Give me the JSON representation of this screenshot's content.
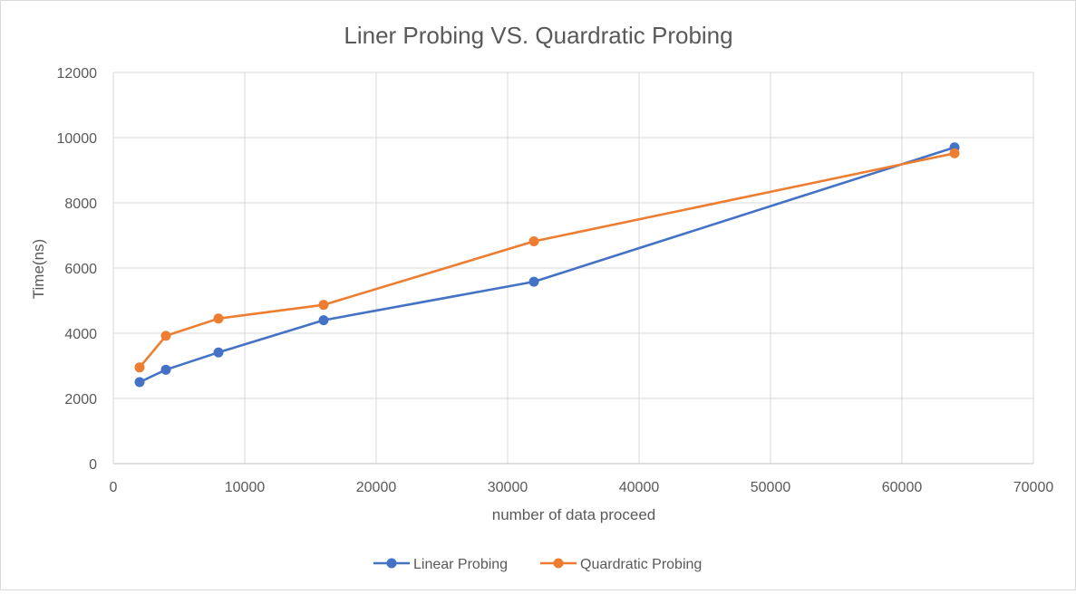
{
  "chart_data": {
    "type": "line",
    "title": "Liner Probing VS. Quardratic Probing",
    "xlabel": "number of data proceed",
    "ylabel": "Time(ns)",
    "xlim": [
      0,
      70000
    ],
    "ylim": [
      0,
      12000
    ],
    "x_ticks": [
      0,
      10000,
      20000,
      30000,
      40000,
      50000,
      60000,
      70000
    ],
    "y_ticks": [
      0,
      2000,
      4000,
      6000,
      8000,
      10000,
      12000
    ],
    "grid": true,
    "legend_position": "bottom",
    "series": [
      {
        "name": "Linear Probing",
        "color": "#4472C4",
        "x": [
          2000,
          4000,
          8000,
          16000,
          32000,
          64000
        ],
        "y": [
          2500,
          2880,
          3410,
          4400,
          5580,
          9700
        ]
      },
      {
        "name": "Quardratic Probing",
        "color": "#ED7D31",
        "x": [
          2000,
          4000,
          8000,
          16000,
          32000,
          64000
        ],
        "y": [
          2950,
          3920,
          4450,
          4870,
          6820,
          9520
        ]
      }
    ]
  }
}
